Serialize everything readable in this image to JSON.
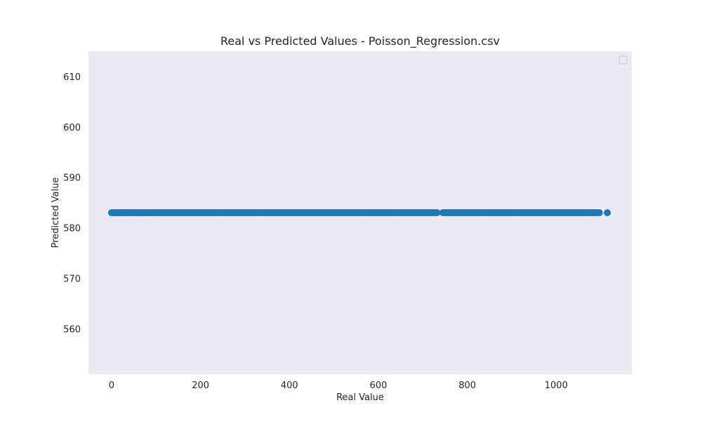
{
  "chart_data": {
    "type": "scatter",
    "title": "Real vs Predicted Values - Poisson_Regression.csv",
    "xlabel": "Real Value",
    "ylabel": "Predicted Value",
    "xlim": [
      -52,
      1170
    ],
    "ylim": [
      551,
      615
    ],
    "xticks": [
      0,
      200,
      400,
      600,
      800,
      1000
    ],
    "yticks": [
      560,
      570,
      580,
      590,
      600,
      610
    ],
    "grid": false,
    "legend": "top-right",
    "legend_entries": [],
    "colors": {
      "background": "#eaeaf2",
      "marker": "#1f77b4"
    },
    "series": [
      {
        "predicted_value": 583,
        "x": [
          0,
          3,
          6,
          9,
          12,
          15,
          18,
          21,
          24,
          27,
          30,
          33,
          36,
          39,
          42,
          45,
          48,
          51,
          54,
          57,
          60,
          63,
          66,
          69,
          72,
          75,
          78,
          81,
          84,
          87,
          90,
          93,
          96,
          100,
          104,
          108,
          112,
          116,
          120,
          124,
          128,
          132,
          136,
          140,
          144,
          148,
          152,
          156,
          160,
          164,
          168,
          172,
          176,
          180,
          184,
          188,
          192,
          196,
          200,
          204,
          208,
          212,
          216,
          220,
          224,
          228,
          232,
          236,
          240,
          244,
          248,
          252,
          256,
          260,
          264,
          268,
          272,
          276,
          280,
          284,
          288,
          292,
          296,
          300,
          304,
          308,
          312,
          316,
          320,
          324,
          328,
          332,
          336,
          340,
          344,
          348,
          352,
          356,
          360,
          364,
          368,
          372,
          376,
          380,
          384,
          388,
          392,
          396,
          400,
          404,
          408,
          412,
          416,
          420,
          424,
          428,
          432,
          436,
          440,
          444,
          448,
          452,
          456,
          460,
          464,
          468,
          472,
          476,
          480,
          484,
          488,
          492,
          496,
          500,
          504,
          508,
          512,
          516,
          520,
          524,
          528,
          532,
          536,
          540,
          544,
          548,
          552,
          556,
          560,
          564,
          568,
          572,
          576,
          580,
          584,
          588,
          592,
          596,
          600,
          604,
          608,
          612,
          616,
          620,
          624,
          628,
          632,
          636,
          640,
          644,
          648,
          652,
          656,
          660,
          664,
          668,
          672,
          676,
          680,
          684,
          688,
          692,
          696,
          700,
          704,
          708,
          712,
          716,
          720,
          724,
          728,
          732,
          745,
          749,
          753,
          757,
          761,
          765,
          769,
          773,
          777,
          781,
          785,
          789,
          793,
          797,
          801,
          805,
          809,
          813,
          817,
          821,
          825,
          829,
          833,
          837,
          841,
          845,
          849,
          853,
          857,
          861,
          865,
          869,
          873,
          877,
          881,
          885,
          889,
          893,
          897,
          901,
          905,
          909,
          913,
          917,
          921,
          925,
          929,
          933,
          937,
          941,
          945,
          949,
          953,
          957,
          961,
          965,
          969,
          973,
          977,
          981,
          985,
          989,
          993,
          997,
          1001,
          1005,
          1009,
          1013,
          1017,
          1021,
          1025,
          1029,
          1033,
          1037,
          1041,
          1045,
          1049,
          1053,
          1057,
          1061,
          1065,
          1069,
          1073,
          1077,
          1081,
          1085,
          1089,
          1093,
          1097,
          1115
        ]
      }
    ]
  }
}
